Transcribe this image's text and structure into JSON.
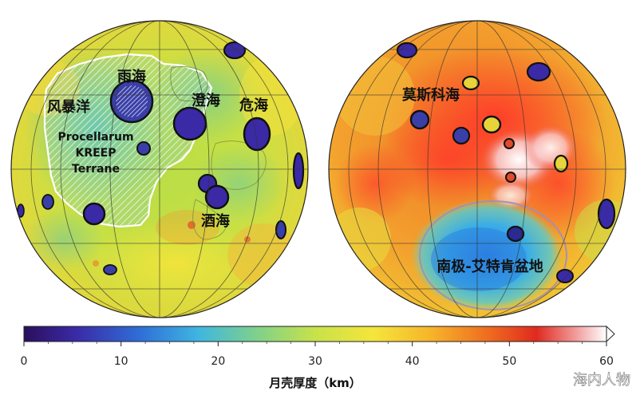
{
  "near_side": {
    "labels": {
      "mare_imbrium": "雨海",
      "oceanus_procellarum": "风暴洋",
      "mare_serenitatis": "澄海",
      "mare_crisium": "危海",
      "mare_nectaris": "酒海",
      "pkt_line1": "Procellarum",
      "pkt_line2": "KREEP",
      "pkt_line3": "Terrane"
    }
  },
  "far_side": {
    "labels": {
      "mare_moscoviense": "莫斯科海",
      "spa_basin": "南极-艾特肯盆地"
    }
  },
  "colorbar": {
    "title": "月壳厚度（km）",
    "unit": "km",
    "min": 0,
    "max": 60,
    "ticks": [
      "0",
      "10",
      "20",
      "30",
      "40",
      "50",
      "60"
    ],
    "colors": [
      "#2b0f5c",
      "#3a2aa6",
      "#2f6fd8",
      "#3fb6e0",
      "#7fd18a",
      "#c8e24a",
      "#f5e53b",
      "#f7b32b",
      "#ee6a1f",
      "#e02a1f",
      "#f2a0a0",
      "#ffffff"
    ]
  },
  "watermark": "海内人物"
}
